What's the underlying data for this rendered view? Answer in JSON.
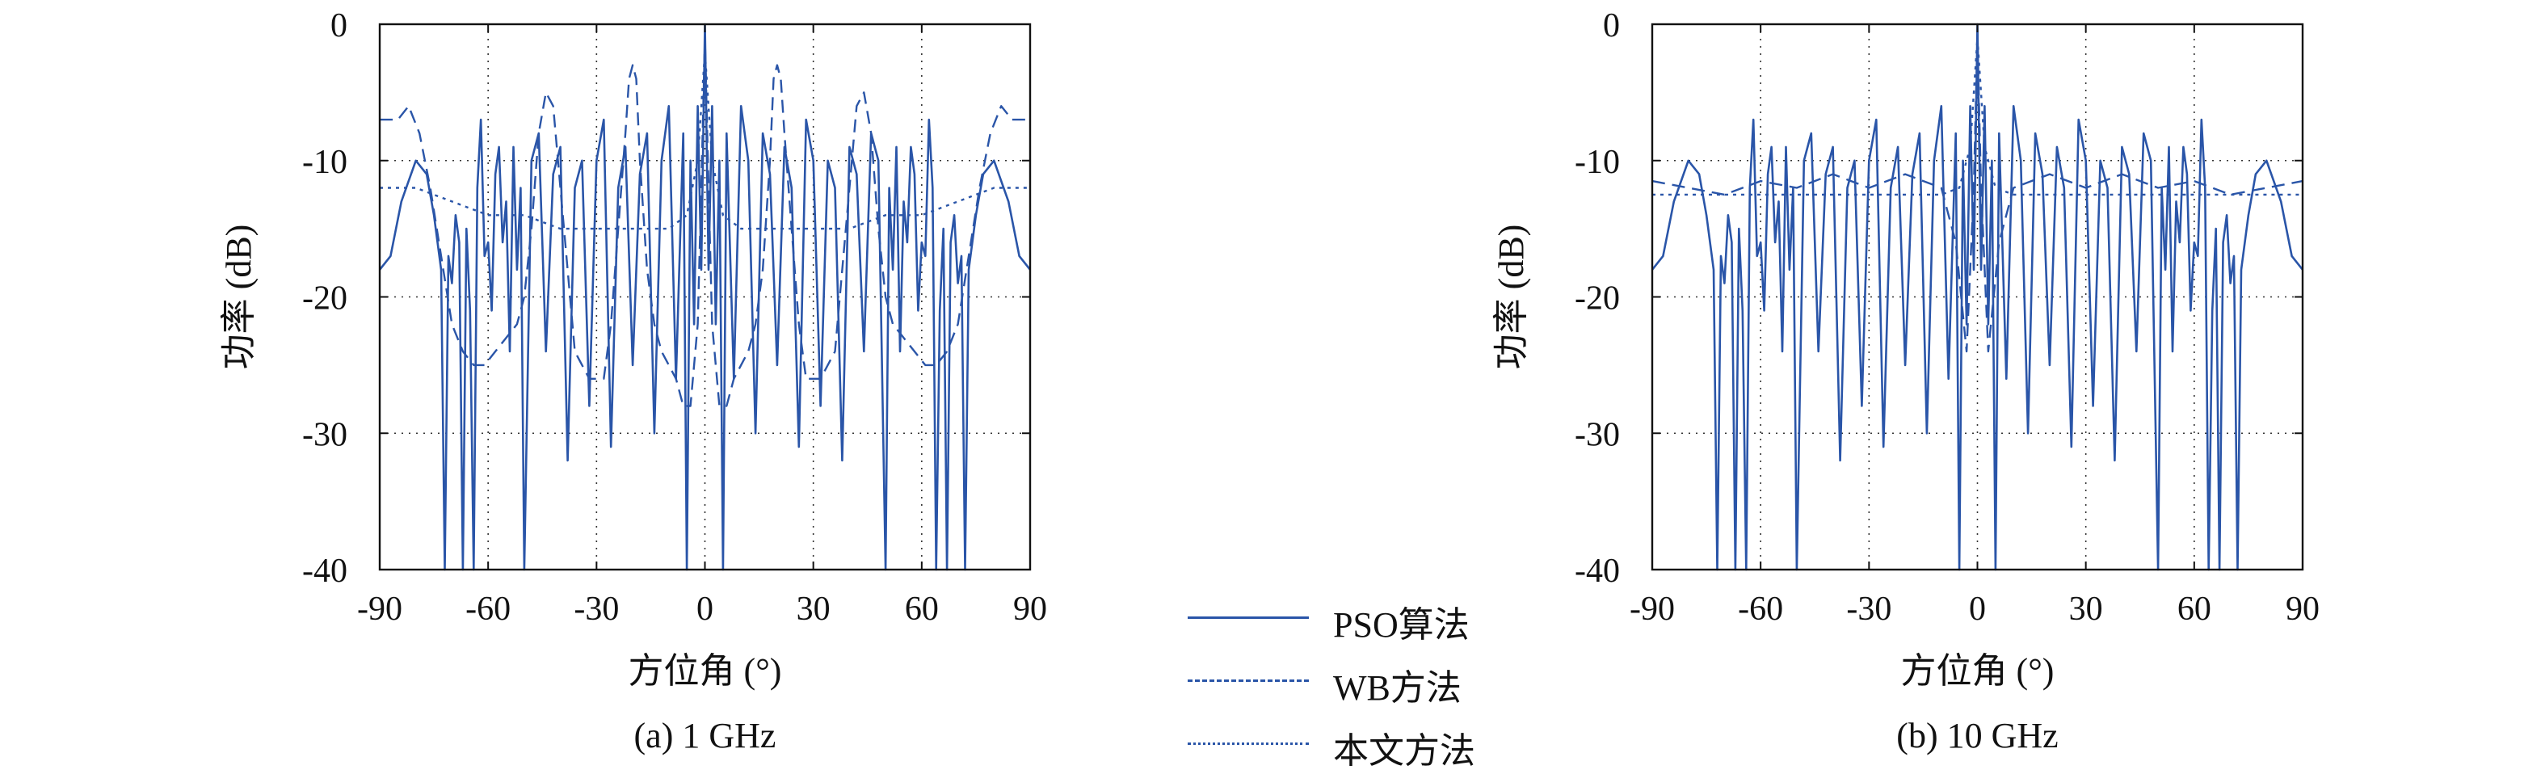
{
  "legend": [
    {
      "label": "PSO算法",
      "style": "solid"
    },
    {
      "label": "WB方法",
      "style": "dashed"
    },
    {
      "label": "本文方法",
      "style": "dotted"
    }
  ],
  "chart_data": [
    {
      "type": "line",
      "subtitle": "(a) 1 GHz",
      "xlabel": "方位角 (°)",
      "ylabel": "功率 (dB)",
      "xlim": [
        -90,
        90
      ],
      "ylim": [
        -40,
        0
      ],
      "xticks": [
        -90,
        -60,
        -30,
        0,
        30,
        60,
        90
      ],
      "yticks": [
        0,
        -10,
        -20,
        -30,
        -40
      ],
      "grid": true,
      "series_color": "#2a55a8",
      "series": [
        {
          "name": "PSO算法",
          "style": "solid",
          "x": [
            -90,
            -87,
            -84,
            -80,
            -77,
            -75,
            -73,
            -72,
            -71,
            -70,
            -69,
            -68,
            -67,
            -66,
            -65,
            -64,
            -63,
            -62,
            -61,
            -60,
            -59,
            -58,
            -57,
            -56,
            -55,
            -54,
            -53,
            -52,
            -51,
            -50,
            -48,
            -46,
            -44,
            -42,
            -40,
            -38,
            -36,
            -34,
            -32,
            -30,
            -28,
            -26,
            -24,
            -22,
            -20,
            -18,
            -16,
            -14,
            -12,
            -10,
            -8,
            -6,
            -5,
            -4,
            -3,
            -2,
            -1,
            0,
            1,
            2,
            3,
            4,
            5,
            6,
            8,
            10,
            12,
            14,
            16,
            18,
            20,
            22,
            24,
            26,
            28,
            30,
            32,
            34,
            36,
            38,
            40,
            42,
            44,
            46,
            48,
            50,
            51,
            52,
            53,
            54,
            55,
            56,
            57,
            58,
            59,
            60,
            61,
            62,
            63,
            64,
            65,
            66,
            67,
            68,
            69,
            70,
            71,
            72,
            73,
            75,
            77,
            80,
            84,
            87,
            90
          ],
          "y": [
            -18,
            -17,
            -13,
            -10,
            -11,
            -14,
            -18,
            -40,
            -17,
            -19,
            -14,
            -16,
            -40,
            -15,
            -21,
            -40,
            -12,
            -7,
            -17,
            -16,
            -21,
            -11,
            -9,
            -16,
            -13,
            -24,
            -9,
            -18,
            -12,
            -40,
            -10,
            -8,
            -24,
            -11,
            -9,
            -32,
            -12,
            -10,
            -28,
            -10,
            -7,
            -31,
            -12,
            -9,
            -25,
            -11,
            -8,
            -30,
            -10,
            -6,
            -26,
            -8,
            -40,
            -10,
            -22,
            -6,
            -18,
            0,
            -18,
            -6,
            -22,
            -10,
            -40,
            -8,
            -26,
            -6,
            -10,
            -30,
            -8,
            -11,
            -25,
            -9,
            -12,
            -31,
            -7,
            -10,
            -28,
            -10,
            -12,
            -32,
            -9,
            -11,
            -24,
            -8,
            -10,
            -40,
            -12,
            -18,
            -9,
            -24,
            -13,
            -16,
            -9,
            -11,
            -21,
            -16,
            -17,
            -7,
            -12,
            -40,
            -21,
            -15,
            -40,
            -16,
            -14,
            -19,
            -17,
            -40,
            -18,
            -14,
            -11,
            -10,
            -13,
            -17,
            -18
          ]
        },
        {
          "name": "WB方法",
          "style": "dashed",
          "x": [
            -90,
            -85,
            -82,
            -79,
            -76,
            -73,
            -70,
            -67,
            -64,
            -61,
            -58,
            -55,
            -52,
            -50,
            -48,
            -46,
            -44,
            -42,
            -40,
            -36,
            -32,
            -28,
            -26,
            -24,
            -22,
            -21,
            -20,
            -19,
            -18,
            -16,
            -14,
            -12,
            -10,
            -8,
            -6,
            -4,
            -2,
            -1,
            0,
            1,
            2,
            4,
            6,
            8,
            10,
            12,
            14,
            16,
            18,
            19,
            20,
            21,
            22,
            24,
            26,
            28,
            32,
            36,
            40,
            42,
            44,
            46,
            48,
            50,
            52,
            55,
            58,
            61,
            64,
            67,
            70,
            73,
            76,
            79,
            82,
            85,
            90
          ],
          "y": [
            -7,
            -7,
            -6,
            -8,
            -12,
            -17,
            -22,
            -24,
            -25,
            -25,
            -24,
            -23,
            -22,
            -20,
            -15,
            -8,
            -5,
            -6,
            -12,
            -24,
            -26,
            -26,
            -22,
            -15,
            -8,
            -4,
            -3,
            -4,
            -10,
            -18,
            -22,
            -24,
            -25,
            -26,
            -28,
            -28,
            -22,
            -12,
            -1,
            -12,
            -22,
            -28,
            -28,
            -26,
            -25,
            -24,
            -22,
            -18,
            -10,
            -4,
            -3,
            -4,
            -8,
            -15,
            -22,
            -26,
            -26,
            -24,
            -12,
            -6,
            -5,
            -8,
            -15,
            -20,
            -22,
            -23,
            -24,
            -25,
            -25,
            -24,
            -22,
            -17,
            -12,
            -8,
            -6,
            -7,
            -7
          ]
        },
        {
          "name": "本文方法",
          "style": "dotted",
          "x": [
            -90,
            -80,
            -70,
            -60,
            -50,
            -40,
            -30,
            -20,
            -10,
            -5,
            -2,
            0,
            2,
            5,
            10,
            20,
            30,
            40,
            50,
            60,
            70,
            80,
            90
          ],
          "y": [
            -12,
            -12,
            -13,
            -14,
            -14,
            -15,
            -15,
            -15,
            -15,
            -14,
            -10,
            -2,
            -10,
            -14,
            -15,
            -15,
            -15,
            -15,
            -14,
            -14,
            -13,
            -12,
            -12
          ]
        }
      ]
    },
    {
      "type": "line",
      "subtitle": "(b) 10 GHz",
      "xlabel": "方位角 (°)",
      "ylabel": "功率 (dB)",
      "xlim": [
        -90,
        90
      ],
      "ylim": [
        -40,
        0
      ],
      "xticks": [
        -90,
        -60,
        -30,
        0,
        30,
        60,
        90
      ],
      "yticks": [
        0,
        -10,
        -20,
        -30,
        -40
      ],
      "grid": true,
      "series_color": "#2a55a8",
      "series": [
        {
          "name": "PSO算法",
          "style": "solid",
          "x": [
            -90,
            -87,
            -84,
            -80,
            -77,
            -75,
            -73,
            -72,
            -71,
            -70,
            -69,
            -68,
            -67,
            -66,
            -65,
            -64,
            -63,
            -62,
            -61,
            -60,
            -59,
            -58,
            -57,
            -56,
            -55,
            -54,
            -53,
            -52,
            -51,
            -50,
            -48,
            -46,
            -44,
            -42,
            -40,
            -38,
            -36,
            -34,
            -32,
            -30,
            -28,
            -26,
            -24,
            -22,
            -20,
            -18,
            -16,
            -14,
            -12,
            -10,
            -8,
            -6,
            -5,
            -4,
            -3,
            -2,
            -1,
            0,
            1,
            2,
            3,
            4,
            5,
            6,
            8,
            10,
            12,
            14,
            16,
            18,
            20,
            22,
            24,
            26,
            28,
            30,
            32,
            34,
            36,
            38,
            40,
            42,
            44,
            46,
            48,
            50,
            51,
            52,
            53,
            54,
            55,
            56,
            57,
            58,
            59,
            60,
            61,
            62,
            63,
            64,
            65,
            66,
            67,
            68,
            69,
            70,
            71,
            72,
            73,
            75,
            77,
            80,
            84,
            87,
            90
          ],
          "y": [
            -18,
            -17,
            -13,
            -10,
            -11,
            -14,
            -18,
            -40,
            -17,
            -19,
            -14,
            -16,
            -40,
            -15,
            -21,
            -40,
            -12,
            -7,
            -17,
            -16,
            -21,
            -11,
            -9,
            -16,
            -13,
            -24,
            -9,
            -18,
            -12,
            -40,
            -10,
            -8,
            -24,
            -11,
            -9,
            -32,
            -12,
            -10,
            -28,
            -10,
            -7,
            -31,
            -12,
            -9,
            -25,
            -11,
            -8,
            -30,
            -10,
            -6,
            -26,
            -8,
            -40,
            -10,
            -22,
            -6,
            -18,
            0,
            -18,
            -6,
            -22,
            -10,
            -40,
            -8,
            -26,
            -6,
            -10,
            -30,
            -8,
            -11,
            -25,
            -9,
            -12,
            -31,
            -7,
            -10,
            -28,
            -10,
            -12,
            -32,
            -9,
            -11,
            -24,
            -8,
            -10,
            -40,
            -12,
            -18,
            -9,
            -24,
            -13,
            -16,
            -9,
            -11,
            -21,
            -16,
            -17,
            -7,
            -12,
            -40,
            -21,
            -15,
            -40,
            -16,
            -14,
            -19,
            -17,
            -40,
            -18,
            -14,
            -11,
            -10,
            -13,
            -17,
            -18
          ]
        },
        {
          "name": "WB方法",
          "style": "dashed",
          "x": [
            -90,
            -80,
            -70,
            -60,
            -50,
            -40,
            -30,
            -20,
            -10,
            -6,
            -3,
            -1,
            0,
            1,
            3,
            6,
            10,
            20,
            30,
            40,
            50,
            60,
            70,
            80,
            90
          ],
          "y": [
            -11.5,
            -12,
            -12.5,
            -11.5,
            -12,
            -11,
            -12,
            -11,
            -12,
            -16,
            -24,
            -12,
            -1,
            -12,
            -24,
            -16,
            -12,
            -11,
            -12,
            -11,
            -12,
            -11.5,
            -12.5,
            -12,
            -11.5
          ]
        },
        {
          "name": "本文方法",
          "style": "dotted",
          "x": [
            -90,
            -80,
            -70,
            -60,
            -50,
            -40,
            -30,
            -20,
            -10,
            -5,
            -2,
            0,
            2,
            5,
            10,
            20,
            30,
            40,
            50,
            60,
            70,
            80,
            90
          ],
          "y": [
            -12.5,
            -12.5,
            -12.5,
            -12.5,
            -12.5,
            -12.5,
            -12.5,
            -12.5,
            -12.5,
            -12,
            -9,
            -1,
            -9,
            -12,
            -12.5,
            -12.5,
            -12.5,
            -12.5,
            -12.5,
            -12.5,
            -12.5,
            -12.5,
            -12.5
          ]
        }
      ]
    }
  ]
}
